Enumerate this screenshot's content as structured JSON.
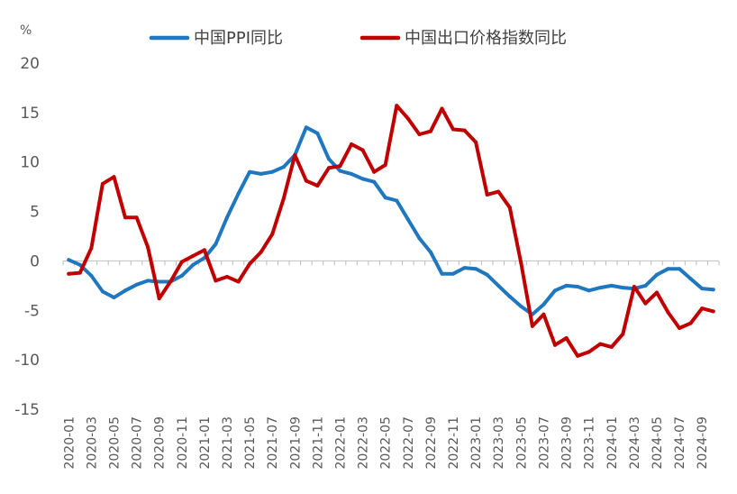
{
  "chart_data": {
    "type": "line",
    "title": "",
    "unit_label": "%",
    "ylim": [
      -15,
      20
    ],
    "yticks": [
      20,
      15,
      10,
      5,
      0,
      -5,
      -10,
      -15
    ],
    "ytick_labels": [
      "20",
      "15",
      "10",
      "5",
      "0",
      "-5",
      "-10",
      "-15"
    ],
    "grid": false,
    "legend": "top",
    "categories": [
      "2020-01",
      "2020-02",
      "2020-03",
      "2020-04",
      "2020-05",
      "2020-06",
      "2020-07",
      "2020-08",
      "2020-09",
      "2020-10",
      "2020-11",
      "2020-12",
      "2021-01",
      "2021-02",
      "2021-03",
      "2021-04",
      "2021-05",
      "2021-06",
      "2021-07",
      "2021-08",
      "2021-09",
      "2021-10",
      "2021-11",
      "2021-12",
      "2022-01",
      "2022-02",
      "2022-03",
      "2022-04",
      "2022-05",
      "2022-06",
      "2022-07",
      "2022-08",
      "2022-09",
      "2022-10",
      "2022-11",
      "2022-12",
      "2023-01",
      "2023-02",
      "2023-03",
      "2023-04",
      "2023-05",
      "2023-06",
      "2023-07",
      "2023-08",
      "2023-09",
      "2023-10",
      "2023-11",
      "2023-12",
      "2024-01",
      "2024-02",
      "2024-03",
      "2024-04",
      "2024-05",
      "2024-06",
      "2024-07",
      "2024-08",
      "2024-09",
      "2024-10"
    ],
    "tick_labels": [
      "2020-01",
      "2020-03",
      "2020-05",
      "2020-07",
      "2020-09",
      "2020-11",
      "2021-01",
      "2021-03",
      "2021-05",
      "2021-07",
      "2021-09",
      "2021-11",
      "2022-01",
      "2022-03",
      "2022-05",
      "2022-07",
      "2022-09",
      "2022-11",
      "2023-01",
      "2023-03",
      "2023-05",
      "2023-07",
      "2023-09",
      "2023-11",
      "2024-01",
      "2024-03",
      "2024-05",
      "2024-07",
      "2024-09"
    ],
    "series": [
      {
        "name": "中国PPI同比",
        "color": "#1f77c0",
        "values": [
          0.1,
          -0.4,
          -1.5,
          -3.1,
          -3.7,
          -3.0,
          -2.4,
          -2.0,
          -2.1,
          -2.1,
          -1.5,
          -0.4,
          0.3,
          1.7,
          4.4,
          6.8,
          9.0,
          8.8,
          9.0,
          9.5,
          10.7,
          13.5,
          12.9,
          10.3,
          9.1,
          8.8,
          8.3,
          8.0,
          6.4,
          6.1,
          4.2,
          2.3,
          0.9,
          -1.3,
          -1.3,
          -0.7,
          -0.8,
          -1.4,
          -2.5,
          -3.6,
          -4.6,
          -5.4,
          -4.4,
          -3.0,
          -2.5,
          -2.6,
          -3.0,
          -2.7,
          -2.5,
          -2.7,
          -2.8,
          -2.5,
          -1.4,
          -0.8,
          -0.8,
          -1.8,
          -2.8,
          -2.9
        ]
      },
      {
        "name": "中国出口价格指数同比",
        "color": "#c00000",
        "values": [
          -1.3,
          -1.2,
          1.3,
          7.8,
          8.5,
          4.4,
          4.4,
          1.4,
          -3.8,
          -2.1,
          -0.1,
          0.5,
          1.1,
          -2.0,
          -1.6,
          -2.1,
          -0.3,
          0.9,
          2.7,
          6.3,
          10.7,
          8.1,
          7.6,
          9.4,
          9.6,
          11.8,
          11.2,
          9.0,
          9.7,
          15.7,
          14.4,
          12.8,
          13.1,
          15.4,
          13.3,
          13.2,
          12.0,
          6.7,
          7.0,
          5.4,
          -0.2,
          -6.6,
          -5.4,
          -8.5,
          -7.8,
          -9.6,
          -9.2,
          -8.4,
          -8.7,
          -7.4,
          -2.6,
          -4.3,
          -3.2,
          -5.2,
          -6.8,
          -6.3,
          -4.8,
          -5.1
        ]
      }
    ]
  }
}
